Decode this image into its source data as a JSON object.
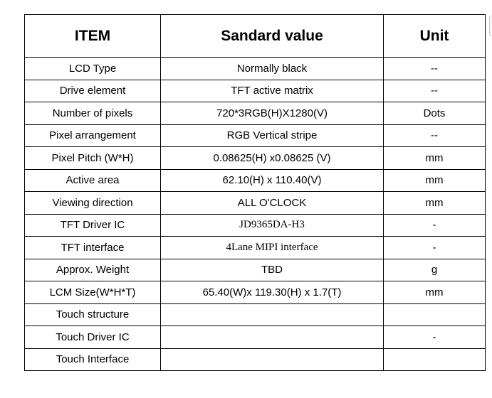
{
  "headers": {
    "item": "ITEM",
    "value": "Sandard value",
    "unit": "Unit"
  },
  "rows": [
    {
      "item": "LCD Type",
      "value": "Normally black",
      "unit": "--"
    },
    {
      "item": "Drive element",
      "value": "TFT active matrix",
      "unit": "--"
    },
    {
      "item": "Number of pixels",
      "value": "720*3RGB(H)X1280(V)",
      "unit": "Dots"
    },
    {
      "item": "Pixel arrangement",
      "value": "RGB Vertical stripe",
      "unit": "--"
    },
    {
      "item": "Pixel Pitch (W*H)",
      "value": "0.08625(H) x0.08625 (V)",
      "unit": "mm"
    },
    {
      "item": "Active area",
      "value": "62.10(H) x 110.40(V)",
      "unit": "mm"
    },
    {
      "item": "Viewing direction",
      "value": "ALL O'CLOCK",
      "unit": "mm"
    },
    {
      "item": "TFT Driver IC",
      "value": "JD9365DA-H3",
      "unit": "-"
    },
    {
      "item": "TFT interface",
      "value": "4Lane MIPI interface",
      "unit": "-"
    },
    {
      "item": "Approx. Weight",
      "value": "TBD",
      "unit": "g"
    },
    {
      "item": "LCM Size(W*H*T)",
      "value": "65.40(W)x 119.30(H) x 1.7(T)",
      "unit": "mm"
    },
    {
      "item": "Touch structure",
      "value": "",
      "unit": ""
    },
    {
      "item": "Touch Driver IC",
      "value": "",
      "unit": "-"
    },
    {
      "item": "Touch Interface",
      "value": "",
      "unit": ""
    }
  ]
}
